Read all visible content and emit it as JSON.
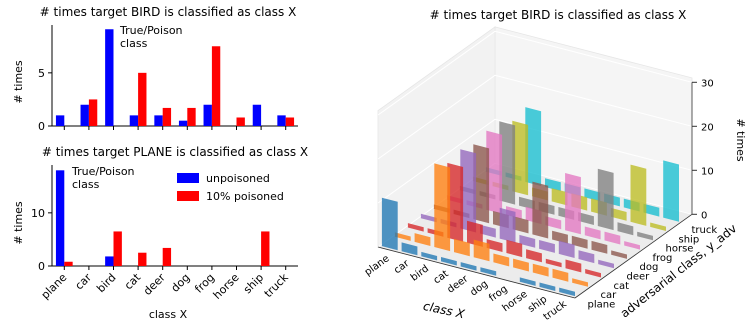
{
  "chart_data": [
    {
      "type": "bar",
      "title": "# times target BIRD is classified as class X",
      "xlabel": "",
      "ylabel": "# times",
      "ylim": [
        0,
        9.5
      ],
      "yticks": [
        0,
        5
      ],
      "categories": [
        "plane",
        "car",
        "bird",
        "cat",
        "deer",
        "dog",
        "frog",
        "horse",
        "ship",
        "truck"
      ],
      "series": [
        {
          "name": "unpoisoned",
          "color": "#0000ff",
          "values": [
            1,
            2,
            9.1,
            1,
            1,
            0.5,
            2,
            0,
            2,
            1
          ]
        },
        {
          "name": "10% poisoned",
          "color": "#ff0000",
          "values": [
            0,
            2.5,
            0,
            5,
            1.7,
            1.7,
            7.5,
            0.8,
            0,
            0.8
          ]
        }
      ],
      "annotation": [
        "True/Poison",
        "class"
      ]
    },
    {
      "type": "bar",
      "title": "# times target PLANE is classified as class X",
      "xlabel": "class X",
      "ylabel": "# times",
      "ylim": [
        0,
        19
      ],
      "yticks": [
        0,
        10
      ],
      "categories": [
        "plane",
        "car",
        "bird",
        "cat",
        "deer",
        "dog",
        "frog",
        "horse",
        "ship",
        "truck"
      ],
      "series": [
        {
          "name": "unpoisoned",
          "color": "#0000ff",
          "values": [
            18,
            0,
            1.8,
            0,
            0,
            0,
            0,
            0,
            0,
            0
          ]
        },
        {
          "name": "10% poisoned",
          "color": "#ff0000",
          "values": [
            0.8,
            0,
            6.5,
            2.5,
            3.4,
            0,
            0,
            0,
            6.5,
            0
          ]
        }
      ],
      "annotation": [
        "True/Poison",
        "class"
      ],
      "legend": {
        "placement": "upper-right",
        "entries": [
          "unpoisoned",
          "10% poisoned"
        ]
      }
    },
    {
      "type": "bar",
      "subtype": "3d-bar",
      "title": "# times target BIRD is classified as class X",
      "xlabel": "class X",
      "ylabel": "adversarial class, y_adv",
      "zlabel": "# times",
      "zlim": [
        0,
        30
      ],
      "zticks": [
        0,
        10,
        20,
        30
      ],
      "categories": [
        "plane",
        "car",
        "bird",
        "cat",
        "deer",
        "dog",
        "frog",
        "horse",
        "ship",
        "truck"
      ],
      "adversarial_classes": [
        "plane",
        "car",
        "cat",
        "deer",
        "dog",
        "frog",
        "horse",
        "ship",
        "truck"
      ],
      "colors": [
        "#1f77b4",
        "#ff7f0e",
        "#d62728",
        "#9467bd",
        "#8c564b",
        "#e377c2",
        "#7f7f7f",
        "#bcbd22",
        "#17becf"
      ],
      "matrix": [
        [
          11,
          2,
          1,
          1,
          1,
          1,
          0,
          1,
          1,
          1
        ],
        [
          1,
          2,
          19,
          3,
          4,
          2,
          2,
          2,
          2,
          1
        ],
        [
          1,
          1,
          17,
          5,
          2,
          3,
          2,
          1,
          2,
          1
        ],
        [
          1,
          1,
          18,
          2,
          7,
          2,
          2,
          3,
          2,
          1
        ],
        [
          1,
          1,
          17,
          3,
          3,
          12,
          2,
          2,
          2,
          1
        ],
        [
          1,
          1,
          18,
          2,
          3,
          2,
          13,
          2,
          2,
          1
        ],
        [
          1,
          1,
          18,
          2,
          2,
          2,
          2,
          13,
          2,
          1
        ],
        [
          1,
          1,
          16,
          2,
          3,
          3,
          3,
          2,
          13,
          1
        ],
        [
          1,
          1,
          17,
          2,
          2,
          2,
          2,
          2,
          2,
          13
        ]
      ]
    }
  ]
}
